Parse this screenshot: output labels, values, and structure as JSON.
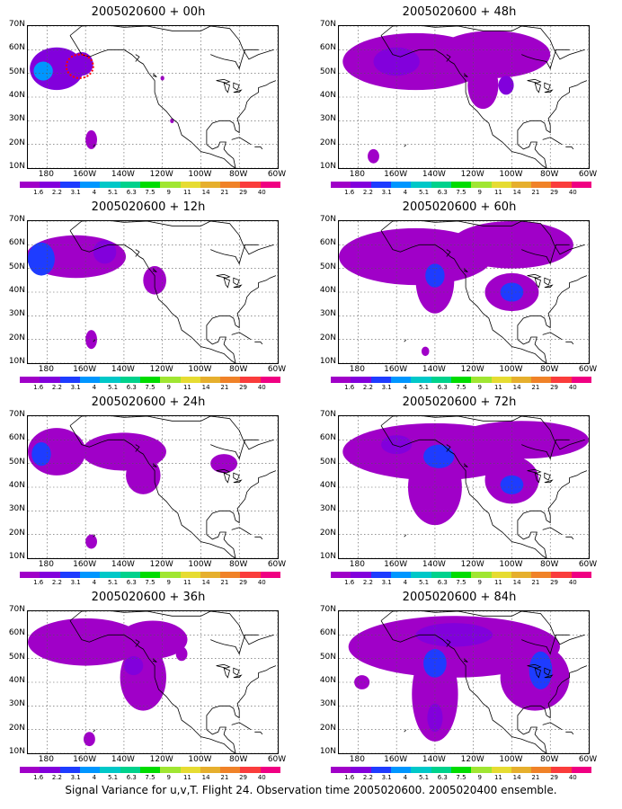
{
  "panels": [
    {
      "title": "2005020600 + 00h",
      "col": 0,
      "row": 0,
      "blobs": [
        {
          "lon": -175,
          "lat": 52,
          "rx": 14,
          "ry": 9,
          "level": 2
        },
        {
          "lon": -162,
          "lat": 54,
          "rx": 6,
          "ry": 5,
          "level": 2
        },
        {
          "lon": -182,
          "lat": 51,
          "rx": 5,
          "ry": 4,
          "level": 4
        },
        {
          "lon": -157,
          "lat": 22,
          "rx": 3,
          "ry": 4,
          "level": 1
        },
        {
          "lon": -120,
          "lat": 48,
          "rx": 1,
          "ry": 1,
          "level": 1
        },
        {
          "lon": -115,
          "lat": 30,
          "rx": 1,
          "ry": 1,
          "level": 1
        }
      ],
      "obs_marker": {
        "lon": -163,
        "lat": 53
      }
    },
    {
      "title": "2005020600 + 48h",
      "col": 1,
      "row": 0,
      "blobs": [
        {
          "lon": -150,
          "lat": 55,
          "rx": 38,
          "ry": 12,
          "level": 1
        },
        {
          "lon": -110,
          "lat": 58,
          "rx": 30,
          "ry": 10,
          "level": 1
        },
        {
          "lon": -160,
          "lat": 55,
          "rx": 12,
          "ry": 6,
          "level": 2
        },
        {
          "lon": -115,
          "lat": 45,
          "rx": 8,
          "ry": 10,
          "level": 1
        },
        {
          "lon": -103,
          "lat": 45,
          "rx": 4,
          "ry": 4,
          "level": 2
        },
        {
          "lon": -172,
          "lat": 15,
          "rx": 3,
          "ry": 3,
          "level": 1
        }
      ]
    },
    {
      "title": "2005020600 + 12h",
      "col": 0,
      "row": 1,
      "blobs": [
        {
          "lon": -165,
          "lat": 55,
          "rx": 26,
          "ry": 9,
          "level": 1
        },
        {
          "lon": -183,
          "lat": 54,
          "rx": 7,
          "ry": 7,
          "level": 3
        },
        {
          "lon": -150,
          "lat": 57,
          "rx": 6,
          "ry": 5,
          "level": 2
        },
        {
          "lon": -124,
          "lat": 45,
          "rx": 6,
          "ry": 6,
          "level": 1
        },
        {
          "lon": -157,
          "lat": 20,
          "rx": 3,
          "ry": 4,
          "level": 1
        }
      ]
    },
    {
      "title": "2005020600 + 60h",
      "col": 1,
      "row": 1,
      "blobs": [
        {
          "lon": -150,
          "lat": 55,
          "rx": 40,
          "ry": 12,
          "level": 1
        },
        {
          "lon": -100,
          "lat": 60,
          "rx": 32,
          "ry": 10,
          "level": 1
        },
        {
          "lon": -140,
          "lat": 45,
          "rx": 10,
          "ry": 14,
          "level": 1
        },
        {
          "lon": -140,
          "lat": 47,
          "rx": 5,
          "ry": 5,
          "level": 3
        },
        {
          "lon": -100,
          "lat": 40,
          "rx": 14,
          "ry": 8,
          "level": 1
        },
        {
          "lon": -100,
          "lat": 40,
          "rx": 6,
          "ry": 4,
          "level": 3
        },
        {
          "lon": -145,
          "lat": 15,
          "rx": 2,
          "ry": 2,
          "level": 1
        }
      ]
    },
    {
      "title": "2005020600 + 24h",
      "col": 0,
      "row": 2,
      "blobs": [
        {
          "lon": -175,
          "lat": 55,
          "rx": 15,
          "ry": 10,
          "level": 1
        },
        {
          "lon": -140,
          "lat": 55,
          "rx": 22,
          "ry": 8,
          "level": 1
        },
        {
          "lon": -130,
          "lat": 45,
          "rx": 9,
          "ry": 8,
          "level": 1
        },
        {
          "lon": -183,
          "lat": 54,
          "rx": 5,
          "ry": 5,
          "level": 3
        },
        {
          "lon": -88,
          "lat": 50,
          "rx": 7,
          "ry": 4,
          "level": 1
        },
        {
          "lon": -157,
          "lat": 17,
          "rx": 3,
          "ry": 3,
          "level": 1
        }
      ]
    },
    {
      "title": "2005020600 + 72h",
      "col": 1,
      "row": 2,
      "blobs": [
        {
          "lon": -140,
          "lat": 55,
          "rx": 48,
          "ry": 12,
          "level": 1
        },
        {
          "lon": -95,
          "lat": 60,
          "rx": 35,
          "ry": 8,
          "level": 1
        },
        {
          "lon": -140,
          "lat": 40,
          "rx": 14,
          "ry": 16,
          "level": 1
        },
        {
          "lon": -138,
          "lat": 53,
          "rx": 8,
          "ry": 5,
          "level": 3
        },
        {
          "lon": -100,
          "lat": 43,
          "rx": 14,
          "ry": 10,
          "level": 1
        },
        {
          "lon": -100,
          "lat": 41,
          "rx": 6,
          "ry": 4,
          "level": 3
        },
        {
          "lon": -160,
          "lat": 58,
          "rx": 8,
          "ry": 4,
          "level": 2
        }
      ]
    },
    {
      "title": "2005020600 + 36h",
      "col": 0,
      "row": 3,
      "blobs": [
        {
          "lon": -160,
          "lat": 57,
          "rx": 30,
          "ry": 10,
          "level": 1
        },
        {
          "lon": -125,
          "lat": 58,
          "rx": 18,
          "ry": 8,
          "level": 1
        },
        {
          "lon": -130,
          "lat": 42,
          "rx": 12,
          "ry": 14,
          "level": 1
        },
        {
          "lon": -135,
          "lat": 47,
          "rx": 5,
          "ry": 4,
          "level": 2
        },
        {
          "lon": -158,
          "lat": 16,
          "rx": 3,
          "ry": 3,
          "level": 1
        },
        {
          "lon": -110,
          "lat": 52,
          "rx": 3,
          "ry": 3,
          "level": 1
        }
      ]
    },
    {
      "title": "2005020600 + 84h",
      "col": 1,
      "row": 3,
      "blobs": [
        {
          "lon": -130,
          "lat": 55,
          "rx": 55,
          "ry": 13,
          "level": 1
        },
        {
          "lon": -140,
          "lat": 35,
          "rx": 12,
          "ry": 20,
          "level": 1
        },
        {
          "lon": -88,
          "lat": 42,
          "rx": 18,
          "ry": 14,
          "level": 1
        },
        {
          "lon": -130,
          "lat": 60,
          "rx": 20,
          "ry": 5,
          "level": 2
        },
        {
          "lon": -140,
          "lat": 48,
          "rx": 6,
          "ry": 6,
          "level": 3
        },
        {
          "lon": -85,
          "lat": 45,
          "rx": 6,
          "ry": 8,
          "level": 3
        },
        {
          "lon": -140,
          "lat": 25,
          "rx": 4,
          "ry": 6,
          "level": 2
        },
        {
          "lon": -178,
          "lat": 40,
          "rx": 4,
          "ry": 3,
          "level": 1
        }
      ]
    }
  ],
  "lat_labels": [
    "70N",
    "60N",
    "50N",
    "40N",
    "30N",
    "20N",
    "10N"
  ],
  "lon_labels": [
    "180",
    "160W",
    "140W",
    "120W",
    "100W",
    "80W",
    "60W"
  ],
  "colorbar_labels": [
    "1.6",
    "2.2",
    "3.1",
    "4",
    "5.1",
    "6.3",
    "7.5",
    "9",
    "11",
    "14",
    "21",
    "29",
    "40"
  ],
  "colorbar_colors": [
    "#a000c8",
    "#8200dc",
    "#1e3cff",
    "#0096ff",
    "#00c8c8",
    "#00d28c",
    "#00dc00",
    "#a0e632",
    "#e6dc32",
    "#e6af2d",
    "#f08228",
    "#fa3c3c",
    "#f00082"
  ],
  "level_colors": [
    "#a000c8",
    "#8200dc",
    "#1e3cff",
    "#0096ff"
  ],
  "caption": "Signal Variance for u,v,T. Flight 24. Observation time 2005020600. 2005020400 ensemble.",
  "map_extent": {
    "lon_min": -190,
    "lon_max": -60,
    "lat_min": 10,
    "lat_max": 70
  }
}
